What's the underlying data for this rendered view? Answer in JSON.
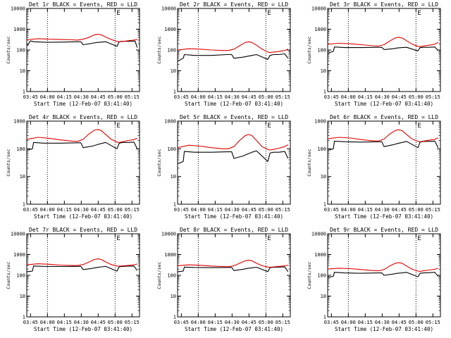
{
  "colors": {
    "events": "#000000",
    "lld": "#e00000",
    "axis": "#000000",
    "background": "#ffffff"
  },
  "chart_data": [
    {
      "type": "line",
      "title": "Det 1r BLACK = Events, RED = LLD",
      "xlabel": "Start Time (12-Feb-07 03:41:40)",
      "ylabel": "Counts/sec",
      "y_scale": "log",
      "ylim": [
        1,
        10000
      ],
      "y_ticks": [
        "1",
        "10",
        "100",
        "1000",
        "10000"
      ],
      "x_ticks": [
        "03:45",
        "04:00",
        "04:15",
        "04:30",
        "04:45",
        "05:00",
        "05:15"
      ],
      "marker": "E",
      "series": [
        {
          "name": "Events",
          "color": "#000000",
          "x_min": [
            0,
            1,
            3,
            4,
            6,
            18,
            30,
            44,
            48,
            50,
            58,
            62,
            66,
            70,
            80,
            82,
            84,
            86,
            88,
            90,
            92,
            94,
            96,
            98
          ],
          "values": [
            180,
            170,
            270,
            270,
            250,
            235,
            240,
            250,
            250,
            180,
            210,
            230,
            240,
            250,
            150,
            250,
            265,
            260,
            265,
            260,
            270,
            265,
            270,
            130
          ]
        },
        {
          "name": "LLD",
          "color": "#e00000",
          "x_min": [
            0,
            10,
            20,
            30,
            40,
            45,
            50,
            55,
            60,
            63,
            66,
            70,
            75,
            80,
            82,
            85,
            90,
            95,
            98
          ],
          "values": [
            310,
            350,
            330,
            320,
            310,
            300,
            330,
            400,
            540,
            570,
            540,
            420,
            320,
            260,
            250,
            260,
            280,
            300,
            320
          ]
        }
      ]
    },
    {
      "type": "line",
      "title": "Det 2r BLACK = Events, RED = LLD",
      "xlabel": "Start Time (12-Feb-07 03:41:40)",
      "ylabel": "Counts/sec",
      "y_scale": "log",
      "ylim": [
        1,
        10000
      ],
      "y_ticks": [
        "1",
        "10",
        "100",
        "1000",
        "10000"
      ],
      "x_ticks": [
        "03:45",
        "04:00",
        "04:15",
        "04:30",
        "04:45",
        "05:00",
        "05:15"
      ],
      "marker": "E",
      "series": [
        {
          "name": "Events",
          "color": "#000000",
          "x_min": [
            0,
            1,
            3,
            5,
            6,
            15,
            30,
            44,
            48,
            50,
            58,
            62,
            66,
            70,
            80,
            82,
            85,
            90,
            95,
            98
          ],
          "values": [
            30,
            30,
            35,
            40,
            60,
            55,
            55,
            60,
            60,
            40,
            45,
            50,
            55,
            60,
            35,
            55,
            60,
            60,
            65,
            40
          ]
        },
        {
          "name": "LLD",
          "color": "#e00000",
          "x_min": [
            0,
            10,
            20,
            30,
            40,
            45,
            50,
            55,
            60,
            63,
            66,
            70,
            75,
            80,
            82,
            85,
            90,
            95,
            98
          ],
          "values": [
            100,
            115,
            110,
            100,
            95,
            95,
            110,
            160,
            230,
            250,
            230,
            170,
            110,
            80,
            75,
            80,
            85,
            95,
            110
          ]
        }
      ]
    },
    {
      "type": "line",
      "title": "Det 3r BLACK = Events, RED = LLD",
      "xlabel": "Start Time (12-Feb-07 03:41:40)",
      "ylabel": "Counts/sec",
      "y_scale": "log",
      "ylim": [
        1,
        10000
      ],
      "y_ticks": [
        "1",
        "10",
        "100",
        "1000",
        "10000"
      ],
      "x_ticks": [
        "03:45",
        "04:00",
        "04:15",
        "04:30",
        "04:45",
        "05:00",
        "05:15"
      ],
      "marker": "E",
      "series": [
        {
          "name": "Events",
          "color": "#000000",
          "x_min": [
            0,
            1,
            3,
            5,
            6,
            15,
            30,
            44,
            48,
            50,
            58,
            62,
            66,
            70,
            80,
            82,
            85,
            90,
            95,
            98
          ],
          "values": [
            70,
            70,
            80,
            85,
            140,
            130,
            130,
            135,
            135,
            105,
            115,
            125,
            130,
            135,
            90,
            130,
            135,
            135,
            140,
            95
          ]
        },
        {
          "name": "LLD",
          "color": "#e00000",
          "x_min": [
            0,
            10,
            20,
            30,
            40,
            45,
            50,
            55,
            60,
            63,
            66,
            70,
            75,
            80,
            82,
            85,
            90,
            95,
            98
          ],
          "values": [
            190,
            210,
            200,
            180,
            160,
            155,
            180,
            270,
            380,
            410,
            380,
            280,
            190,
            150,
            145,
            155,
            170,
            190,
            230
          ]
        }
      ]
    },
    {
      "type": "line",
      "title": "Det 4r BLACK = Events, RED = LLD",
      "xlabel": "Start Time (12-Feb-07 03:41:40)",
      "ylabel": "Counts/sec",
      "y_scale": "log",
      "ylim": [
        1,
        1000
      ],
      "y_ticks": [
        "1",
        "10",
        "100",
        "1000"
      ],
      "x_ticks": [
        "03:45",
        "04:00",
        "04:15",
        "04:30",
        "04:45",
        "05:00",
        "05:15"
      ],
      "marker": "E",
      "series": [
        {
          "name": "Events",
          "color": "#000000",
          "x_min": [
            0,
            1,
            3,
            5,
            6,
            15,
            30,
            44,
            48,
            50,
            58,
            62,
            66,
            70,
            80,
            82,
            85,
            90,
            95,
            98
          ],
          "values": [
            90,
            90,
            95,
            100,
            170,
            160,
            160,
            165,
            165,
            110,
            125,
            140,
            155,
            170,
            100,
            160,
            170,
            170,
            175,
            100
          ]
        },
        {
          "name": "LLD",
          "color": "#e00000",
          "x_min": [
            0,
            10,
            20,
            30,
            40,
            45,
            50,
            55,
            60,
            63,
            66,
            70,
            75,
            80,
            82,
            85,
            90,
            95,
            98
          ],
          "values": [
            220,
            260,
            240,
            210,
            190,
            185,
            220,
            340,
            470,
            500,
            460,
            330,
            220,
            175,
            170,
            180,
            200,
            215,
            240
          ]
        }
      ]
    },
    {
      "type": "line",
      "title": "Det 5r BLACK = Events, RED = LLD",
      "xlabel": "Start Time (12-Feb-07 03:41:40)",
      "ylabel": "Counts/sec",
      "y_scale": "log",
      "ylim": [
        1,
        1000
      ],
      "y_ticks": [
        "1",
        "10",
        "100",
        "1000"
      ],
      "x_ticks": [
        "03:45",
        "04:00",
        "04:15",
        "04:30",
        "04:45",
        "05:00",
        "05:15"
      ],
      "marker": "E",
      "series": [
        {
          "name": "Events",
          "color": "#000000",
          "x_min": [
            0,
            1,
            3,
            5,
            6,
            15,
            30,
            44,
            48,
            50,
            58,
            62,
            66,
            70,
            80,
            82,
            85,
            90,
            95,
            98
          ],
          "values": [
            30,
            30,
            32,
            35,
            80,
            75,
            75,
            78,
            78,
            45,
            55,
            65,
            75,
            85,
            35,
            70,
            75,
            75,
            80,
            45
          ]
        },
        {
          "name": "LLD",
          "color": "#e00000",
          "x_min": [
            0,
            10,
            20,
            30,
            40,
            45,
            50,
            55,
            60,
            63,
            66,
            70,
            75,
            80,
            82,
            85,
            90,
            95,
            98
          ],
          "values": [
            110,
            135,
            125,
            110,
            100,
            100,
            120,
            200,
            300,
            330,
            300,
            200,
            120,
            95,
            90,
            95,
            105,
            120,
            140
          ]
        }
      ]
    },
    {
      "type": "line",
      "title": "Det 6r BLACK = Events, RED = LLD",
      "xlabel": "Start Time (12-Feb-07 03:41:40)",
      "ylabel": "Counts/sec",
      "y_scale": "log",
      "ylim": [
        1,
        1000
      ],
      "y_ticks": [
        "1",
        "10",
        "100",
        "1000"
      ],
      "x_ticks": [
        "03:45",
        "04:00",
        "04:15",
        "04:30",
        "04:45",
        "05:00",
        "05:15"
      ],
      "marker": "E",
      "series": [
        {
          "name": "Events",
          "color": "#000000",
          "x_min": [
            0,
            1,
            3,
            5,
            6,
            15,
            30,
            44,
            48,
            50,
            58,
            62,
            66,
            70,
            80,
            82,
            85,
            90,
            95,
            98
          ],
          "values": [
            90,
            90,
            95,
            100,
            190,
            180,
            175,
            180,
            180,
            120,
            140,
            155,
            170,
            185,
            110,
            175,
            185,
            185,
            190,
            110
          ]
        },
        {
          "name": "LLD",
          "color": "#e00000",
          "x_min": [
            0,
            10,
            20,
            30,
            40,
            45,
            50,
            55,
            60,
            63,
            66,
            70,
            75,
            80,
            82,
            85,
            90,
            95,
            98
          ],
          "values": [
            230,
            260,
            245,
            215,
            195,
            190,
            225,
            340,
            460,
            490,
            450,
            330,
            225,
            185,
            180,
            190,
            205,
            220,
            250
          ]
        }
      ]
    },
    {
      "type": "line",
      "title": "Det 7r BLACK = Events, RED = LLD",
      "xlabel": "Start Time (12-Feb-07 03:41:40)",
      "ylabel": "Counts/sec",
      "y_scale": "log",
      "ylim": [
        1,
        10000
      ],
      "y_ticks": [
        "1",
        "10",
        "100",
        "1000",
        "10000"
      ],
      "x_ticks": [
        "03:45",
        "04:00",
        "04:15",
        "04:30",
        "04:45",
        "05:00",
        "05:15"
      ],
      "marker": "E",
      "series": [
        {
          "name": "Events",
          "color": "#000000",
          "x_min": [
            0,
            1,
            3,
            5,
            6,
            15,
            30,
            44,
            48,
            50,
            58,
            62,
            66,
            70,
            80,
            82,
            85,
            90,
            95,
            98
          ],
          "values": [
            150,
            150,
            155,
            160,
            280,
            270,
            265,
            270,
            270,
            190,
            215,
            240,
            255,
            270,
            160,
            260,
            270,
            275,
            280,
            170
          ]
        },
        {
          "name": "LLD",
          "color": "#e00000",
          "x_min": [
            0,
            10,
            20,
            30,
            40,
            45,
            50,
            55,
            60,
            63,
            66,
            70,
            75,
            80,
            82,
            85,
            90,
            95,
            98
          ],
          "values": [
            320,
            360,
            340,
            310,
            300,
            295,
            330,
            430,
            580,
            620,
            580,
            440,
            330,
            280,
            275,
            285,
            300,
            320,
            350
          ]
        }
      ]
    },
    {
      "type": "line",
      "title": "Det 8r BLACK = Events, RED = LLD",
      "xlabel": "Start Time (12-Feb-07 03:41:40)",
      "ylabel": "Counts/sec",
      "y_scale": "log",
      "ylim": [
        1,
        10000
      ],
      "y_ticks": [
        "1",
        "10",
        "100",
        "1000",
        "10000"
      ],
      "x_ticks": [
        "03:45",
        "04:00",
        "04:15",
        "04:30",
        "04:45",
        "05:00",
        "05:15"
      ],
      "marker": "E",
      "series": [
        {
          "name": "Events",
          "color": "#000000",
          "x_min": [
            0,
            1,
            3,
            5,
            6,
            15,
            30,
            44,
            48,
            50,
            58,
            62,
            66,
            70,
            80,
            82,
            85,
            90,
            95,
            98
          ],
          "values": [
            150,
            150,
            155,
            160,
            250,
            240,
            235,
            240,
            240,
            170,
            195,
            215,
            230,
            245,
            150,
            235,
            245,
            250,
            255,
            150
          ]
        },
        {
          "name": "LLD",
          "color": "#e00000",
          "x_min": [
            0,
            10,
            20,
            30,
            40,
            45,
            50,
            55,
            60,
            63,
            66,
            70,
            75,
            80,
            82,
            85,
            90,
            95,
            98
          ],
          "values": [
            290,
            320,
            305,
            280,
            265,
            260,
            290,
            380,
            500,
            540,
            500,
            380,
            290,
            250,
            245,
            255,
            270,
            285,
            310
          ]
        }
      ]
    },
    {
      "type": "line",
      "title": "Det 9r BLACK = Events, RED = LLD",
      "xlabel": "Start Time (12-Feb-07 03:41:40)",
      "ylabel": "Counts/sec",
      "y_scale": "log",
      "ylim": [
        1,
        10000
      ],
      "y_ticks": [
        "1",
        "10",
        "100",
        "1000",
        "10000"
      ],
      "x_ticks": [
        "03:45",
        "04:00",
        "04:15",
        "04:30",
        "04:45",
        "05:00",
        "05:15"
      ],
      "marker": "E",
      "series": [
        {
          "name": "Events",
          "color": "#000000",
          "x_min": [
            0,
            1,
            3,
            5,
            6,
            15,
            30,
            44,
            48,
            50,
            58,
            62,
            66,
            70,
            80,
            82,
            85,
            90,
            95,
            98
          ],
          "values": [
            80,
            80,
            85,
            90,
            140,
            130,
            125,
            130,
            130,
            100,
            115,
            125,
            130,
            140,
            85,
            125,
            130,
            135,
            140,
            90
          ]
        },
        {
          "name": "LLD",
          "color": "#e00000",
          "x_min": [
            0,
            10,
            20,
            30,
            40,
            45,
            50,
            55,
            60,
            63,
            66,
            70,
            75,
            80,
            82,
            85,
            90,
            95,
            98
          ],
          "values": [
            200,
            220,
            210,
            190,
            170,
            165,
            190,
            280,
            380,
            410,
            380,
            280,
            195,
            160,
            155,
            165,
            180,
            195,
            220
          ]
        }
      ]
    }
  ]
}
